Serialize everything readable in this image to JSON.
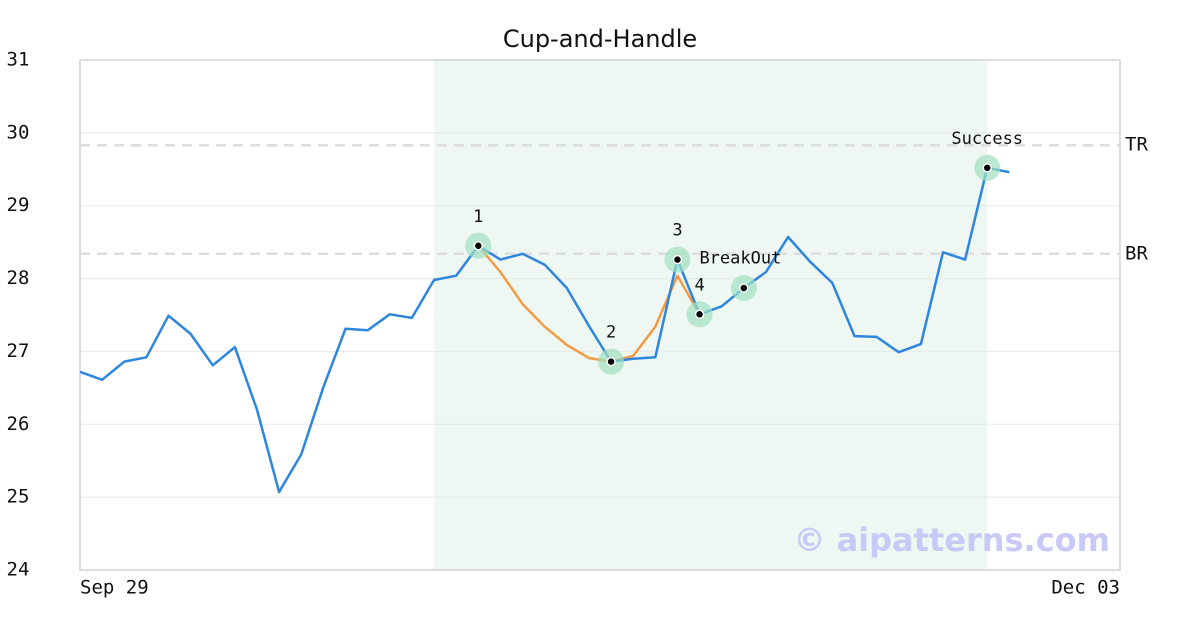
{
  "chart_data": {
    "type": "line",
    "title": "Cup-and-Handle",
    "categories": [
      "Sep 29",
      null,
      null,
      null,
      null,
      null,
      null,
      null,
      null,
      null,
      null,
      null,
      null,
      null,
      null,
      null,
      null,
      null,
      null,
      null,
      null,
      null,
      null,
      null,
      null,
      null,
      null,
      null,
      null,
      null,
      null,
      null,
      null,
      null,
      null,
      null,
      null,
      null,
      null,
      null,
      null,
      null,
      null,
      null,
      null,
      null,
      null,
      "Dec 03"
    ],
    "series": [
      {
        "color": "#2e86de",
        "values": [
          26.72,
          26.61,
          26.86,
          26.92,
          27.49,
          27.24,
          26.81,
          27.06,
          26.2,
          25.07,
          25.59,
          26.51,
          27.31,
          27.29,
          27.51,
          27.46,
          27.98,
          28.04,
          28.45,
          28.26,
          28.34,
          28.19,
          27.87,
          27.35,
          26.86,
          26.9,
          26.92,
          28.26,
          27.51,
          27.62,
          27.87,
          28.09,
          28.57,
          28.23,
          27.94,
          27.21,
          27.2,
          26.99,
          27.1,
          28.36,
          28.26,
          29.52,
          29.46,
          null,
          null,
          null,
          null,
          null
        ]
      },
      {
        "color": "#f39c45",
        "values": [
          null,
          null,
          null,
          null,
          null,
          null,
          null,
          null,
          null,
          null,
          null,
          null,
          null,
          null,
          null,
          null,
          null,
          null,
          28.45,
          28.09,
          27.65,
          27.34,
          27.09,
          26.91,
          26.86,
          26.94,
          27.34,
          28.04,
          27.51,
          null,
          null,
          null,
          null,
          null,
          null,
          null,
          null,
          null,
          null,
          null,
          null,
          null,
          null,
          null,
          null,
          null,
          null,
          null
        ]
      }
    ],
    "ylim": [
      24,
      31
    ],
    "yticks": [
      24,
      25,
      26,
      27,
      28,
      29,
      30,
      31
    ],
    "grid": true,
    "highlight": {
      "from": 16,
      "to": 41,
      "color": "#eef7f2"
    },
    "hlines": [
      {
        "label": "TR",
        "value": 29.83
      },
      {
        "label": "BR",
        "value": 28.34
      }
    ],
    "markers": [
      {
        "index": 18,
        "label": "1"
      },
      {
        "index": 24,
        "label": "2"
      },
      {
        "index": 27,
        "label": "3"
      },
      {
        "index": 28,
        "label": "4"
      },
      {
        "index": 30
      },
      {
        "index": 41,
        "label": "Success"
      }
    ],
    "annotations": [
      {
        "index": 27,
        "text": "BreakOut"
      }
    ],
    "watermark": "© aipatterns.com"
  }
}
